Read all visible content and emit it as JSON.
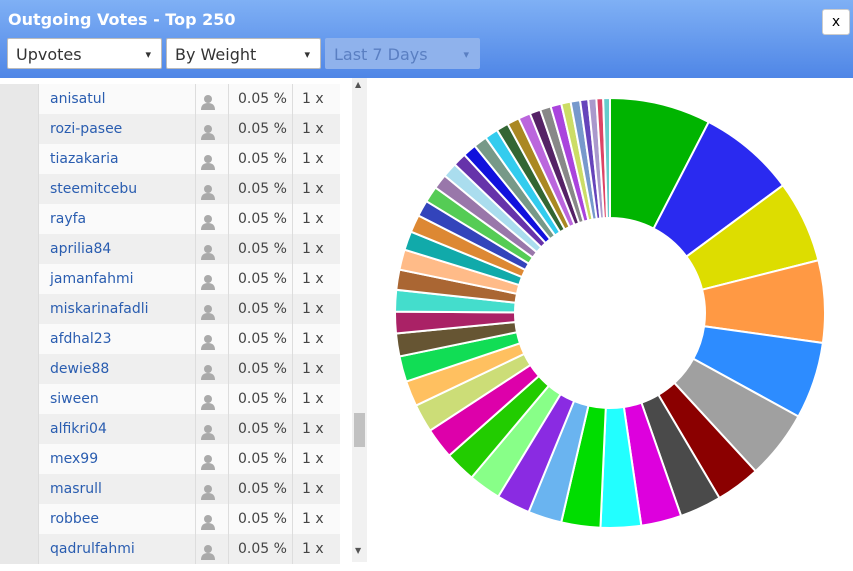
{
  "header": {
    "title": "Outgoing Votes - Top 250",
    "close": "x",
    "dropdowns": [
      "Upvotes",
      "By Weight",
      "Last 7 Days"
    ]
  },
  "table": {
    "rows": [
      [
        "anisatul",
        "0.05 %",
        "1 x"
      ],
      [
        "rozi-pasee",
        "0.05 %",
        "1 x"
      ],
      [
        "tiazakaria",
        "0.05 %",
        "1 x"
      ],
      [
        "steemitcebu",
        "0.05 %",
        "1 x"
      ],
      [
        "rayfa",
        "0.05 %",
        "1 x"
      ],
      [
        "aprilia84",
        "0.05 %",
        "1 x"
      ],
      [
        "jamanfahmi",
        "0.05 %",
        "1 x"
      ],
      [
        "miskarinafadli",
        "0.05 %",
        "1 x"
      ],
      [
        "afdhal23",
        "0.05 %",
        "1 x"
      ],
      [
        "dewie88",
        "0.05 %",
        "1 x"
      ],
      [
        "siween",
        "0.05 %",
        "1 x"
      ],
      [
        "alfikri04",
        "0.05 %",
        "1 x"
      ],
      [
        "mex99",
        "0.05 %",
        "1 x"
      ],
      [
        "masrull",
        "0.05 %",
        "1 x"
      ],
      [
        "robbee",
        "0.05 %",
        "1 x"
      ],
      [
        "qadrulfahmi",
        "0.05 %",
        "1 x"
      ]
    ]
  },
  "chart_data": {
    "type": "donut",
    "values": [
      7.5,
      7.2,
      6.1,
      6.1,
      5.7,
      5.1,
      3.3,
      3.1,
      3,
      3,
      2.9,
      2.5,
      2.5,
      2.4,
      2.3,
      2.3,
      2.1,
      1.9,
      1.9,
      1.7,
      1.6,
      1.6,
      1.5,
      1.5,
      1.4,
      1.3,
      1.2,
      1.2,
      1.1,
      1.1,
      1,
      1,
      1,
      1,
      0.9,
      0.9,
      0.9,
      0.8,
      0.8,
      0.8,
      0.7,
      0.7,
      0.6,
      0.6,
      0.5,
      0.5
    ],
    "colors": [
      "#00b400",
      "#2a2af0",
      "#dddd00",
      "#ff9944",
      "#2d8cff",
      "#a0a0a0",
      "#8b0000",
      "#4a4a4a",
      "#dd00dd",
      "#22ffff",
      "#00dd00",
      "#6ab4f0",
      "#8a2be2",
      "#88ff88",
      "#22cc00",
      "#dd00aa",
      "#ccdd77",
      "#ffc060",
      "#11dd55",
      "#665533",
      "#aa2266",
      "#44ddcc",
      "#aa6633",
      "#ffbb88",
      "#11aaaa",
      "#dd8833",
      "#3344bb",
      "#55cc55",
      "#9977aa",
      "#aaddee",
      "#6633aa",
      "#1111dd",
      "#779988",
      "#33ccee",
      "#336633",
      "#aa8822",
      "#bb66dd",
      "#552266",
      "#888888",
      "#aa44dd",
      "#ccdd66",
      "#7799cc",
      "#6644bb",
      "#aa99cc",
      "#dd4466",
      "#66cccc"
    ]
  }
}
